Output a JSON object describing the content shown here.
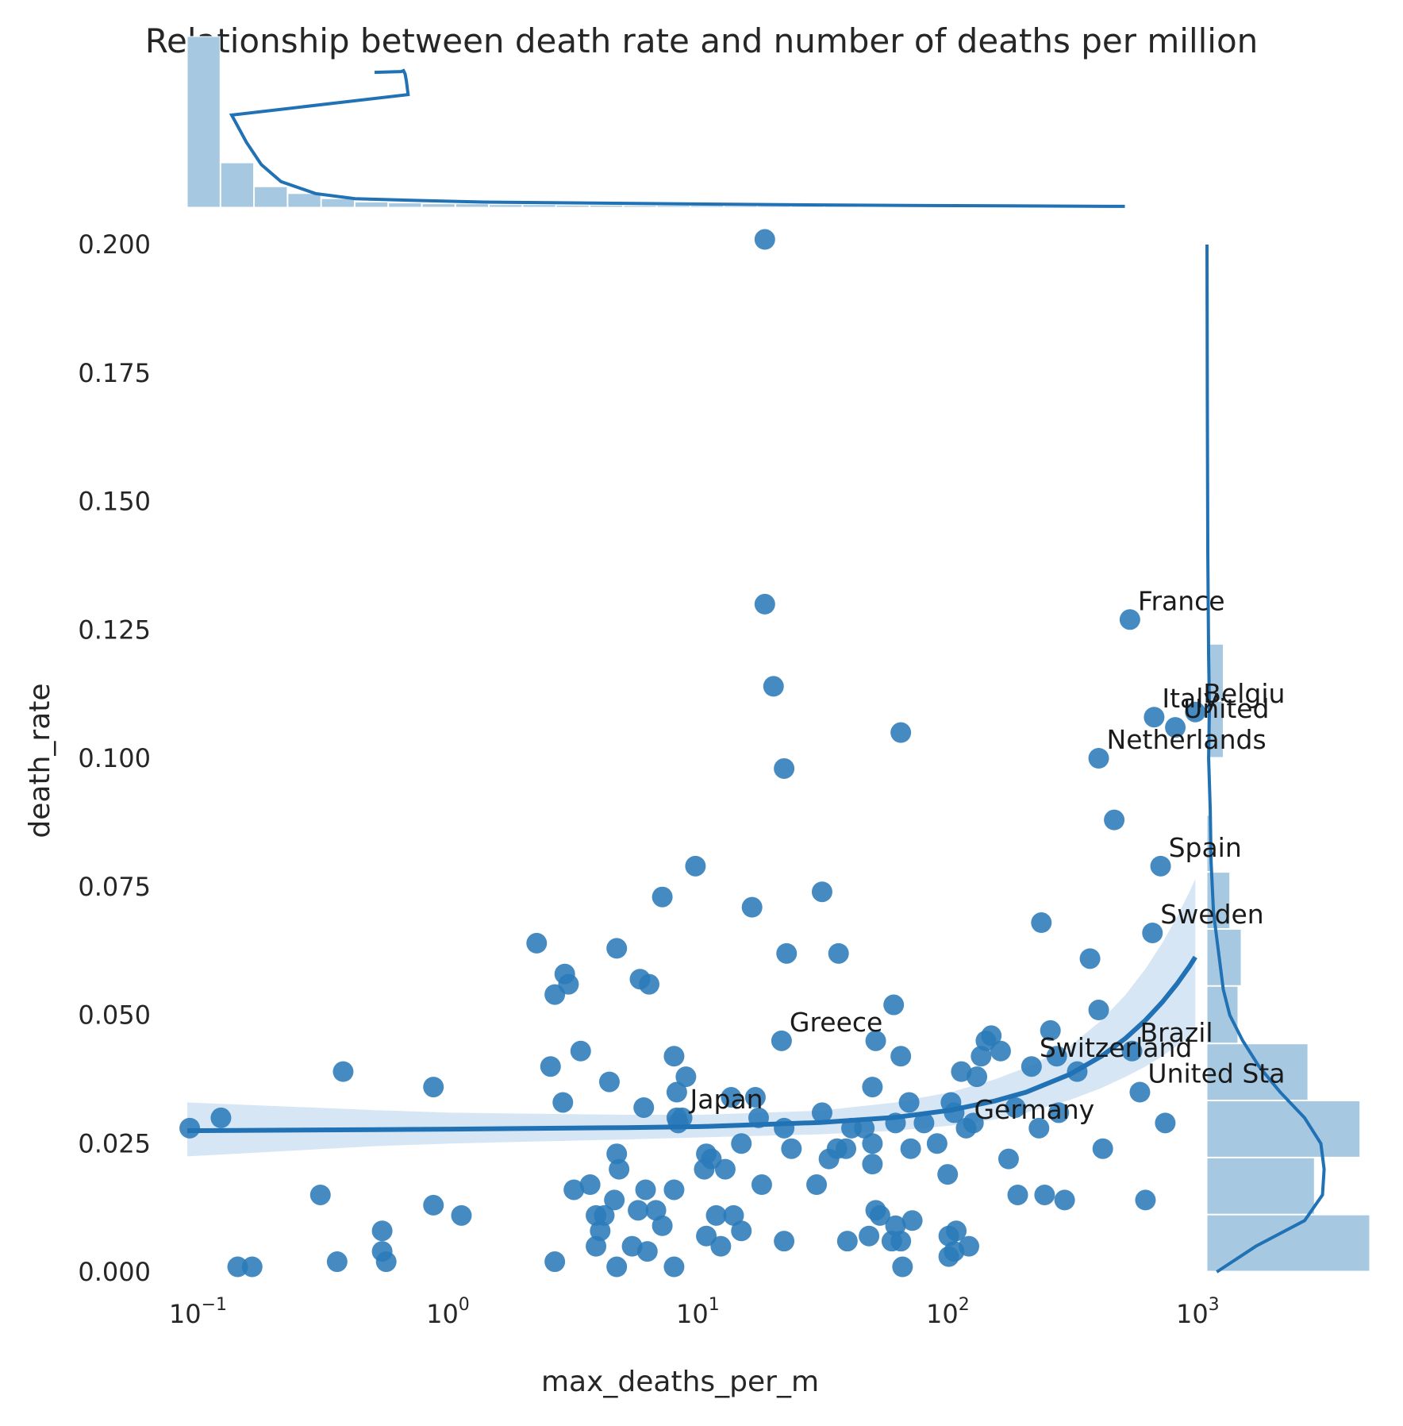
{
  "chart_data": {
    "type": "scatter",
    "title": "Relationship between death rate and number of deaths per million",
    "xlabel": "max_deaths_per_m",
    "ylabel": "death_rate",
    "x_scale": "log",
    "xlim": [
      0.088,
      1050
    ],
    "ylim": [
      0,
      0.2
    ],
    "x_ticks": [
      {
        "value": 0.1,
        "base": "10",
        "exp": "−1"
      },
      {
        "value": 1,
        "base": "10",
        "exp": "0"
      },
      {
        "value": 10,
        "base": "10",
        "exp": "1"
      },
      {
        "value": 100,
        "base": "10",
        "exp": "2"
      },
      {
        "value": 1000,
        "base": "10",
        "exp": "3"
      }
    ],
    "y_ticks": [
      "0.000",
      "0.025",
      "0.050",
      "0.075",
      "0.100",
      "0.125",
      "0.150",
      "0.175",
      "0.200"
    ],
    "grid": false,
    "colors": {
      "points": "#2b7bba",
      "line": "#2171b5",
      "band": "#c6dbef",
      "hist": "#a6c8e0"
    },
    "points": [
      [
        0.09,
        0.028
      ],
      [
        0.12,
        0.03
      ],
      [
        0.14,
        0.001
      ],
      [
        0.16,
        0.001
      ],
      [
        0.3,
        0.015
      ],
      [
        0.35,
        0.002
      ],
      [
        0.37,
        0.039
      ],
      [
        0.53,
        0.008
      ],
      [
        0.53,
        0.004
      ],
      [
        0.55,
        0.002
      ],
      [
        0.85,
        0.036
      ],
      [
        0.85,
        0.013
      ],
      [
        1.1,
        0.011
      ],
      [
        2.2,
        0.064
      ],
      [
        2.5,
        0.04
      ],
      [
        2.6,
        0.054
      ],
      [
        2.6,
        0.002
      ],
      [
        2.8,
        0.033
      ],
      [
        2.85,
        0.058
      ],
      [
        2.95,
        0.056
      ],
      [
        3.1,
        0.016
      ],
      [
        3.3,
        0.043
      ],
      [
        3.6,
        0.017
      ],
      [
        3.8,
        0.011
      ],
      [
        3.8,
        0.005
      ],
      [
        3.95,
        0.008
      ],
      [
        4.1,
        0.011
      ],
      [
        4.3,
        0.037
      ],
      [
        4.5,
        0.014
      ],
      [
        4.6,
        0.063
      ],
      [
        4.6,
        0.023
      ],
      [
        4.6,
        0.001
      ],
      [
        4.7,
        0.02
      ],
      [
        5.3,
        0.005
      ],
      [
        5.6,
        0.012
      ],
      [
        5.7,
        0.057
      ],
      [
        5.9,
        0.032
      ],
      [
        6.0,
        0.016
      ],
      [
        6.1,
        0.004
      ],
      [
        6.2,
        0.056
      ],
      [
        6.6,
        0.012
      ],
      [
        7.0,
        0.073
      ],
      [
        7.0,
        0.009
      ],
      [
        7.8,
        0.042
      ],
      [
        7.8,
        0.016
      ],
      [
        7.8,
        0.001
      ],
      [
        8.0,
        0.035
      ],
      [
        8.0,
        0.03
      ],
      [
        8.1,
        0.029
      ],
      [
        8.4,
        0.03
      ],
      [
        8.7,
        0.038
      ],
      [
        9.5,
        0.079
      ],
      [
        10.3,
        0.02
      ],
      [
        10.5,
        0.023
      ],
      [
        10.5,
        0.007
      ],
      [
        11.0,
        0.022
      ],
      [
        11.5,
        0.011
      ],
      [
        12.0,
        0.005
      ],
      [
        12.5,
        0.02
      ],
      [
        13.2,
        0.034
      ],
      [
        13.5,
        0.011
      ],
      [
        14.5,
        0.025
      ],
      [
        14.5,
        0.008
      ],
      [
        16.0,
        0.071
      ],
      [
        16.5,
        0.034
      ],
      [
        17.0,
        0.03
      ],
      [
        17.5,
        0.017
      ],
      [
        18.0,
        0.201
      ],
      [
        18.0,
        0.13
      ],
      [
        19.5,
        0.114
      ],
      [
        21.0,
        0.045
      ],
      [
        21.5,
        0.098
      ],
      [
        21.5,
        0.006
      ],
      [
        21.5,
        0.028
      ],
      [
        22.0,
        0.062
      ],
      [
        23.0,
        0.024
      ],
      [
        29.0,
        0.017
      ],
      [
        30.5,
        0.074
      ],
      [
        30.5,
        0.031
      ],
      [
        32.5,
        0.022
      ],
      [
        35.0,
        0.024
      ],
      [
        35.5,
        0.062
      ],
      [
        38.0,
        0.024
      ],
      [
        38.5,
        0.006
      ],
      [
        40.0,
        0.028
      ],
      [
        45.0,
        0.028
      ],
      [
        47.0,
        0.007
      ],
      [
        48.5,
        0.036
      ],
      [
        48.5,
        0.025
      ],
      [
        48.5,
        0.021
      ],
      [
        50.0,
        0.012
      ],
      [
        50.0,
        0.045
      ],
      [
        52.0,
        0.011
      ],
      [
        58.0,
        0.006
      ],
      [
        59.0,
        0.052
      ],
      [
        60.0,
        0.029
      ],
      [
        60.0,
        0.009
      ],
      [
        63.0,
        0.105
      ],
      [
        63.0,
        0.042
      ],
      [
        63.0,
        0.006
      ],
      [
        64.0,
        0.001
      ],
      [
        68.0,
        0.033
      ],
      [
        69.0,
        0.024
      ],
      [
        70.0,
        0.01
      ],
      [
        78.0,
        0.029
      ],
      [
        88.0,
        0.025
      ],
      [
        97.0,
        0.019
      ],
      [
        98.0,
        0.007
      ],
      [
        98.0,
        0.003
      ],
      [
        100.0,
        0.033
      ],
      [
        103.0,
        0.031
      ],
      [
        103.0,
        0.004
      ],
      [
        105.0,
        0.008
      ],
      [
        110.0,
        0.039
      ],
      [
        115.0,
        0.028
      ],
      [
        118.0,
        0.005
      ],
      [
        123.0,
        0.029
      ],
      [
        127.0,
        0.038
      ],
      [
        132.0,
        0.042
      ],
      [
        138.0,
        0.045
      ],
      [
        145.0,
        0.046
      ],
      [
        158.0,
        0.043
      ],
      [
        170.0,
        0.022
      ],
      [
        181.0,
        0.032
      ],
      [
        185.0,
        0.015
      ],
      [
        210.0,
        0.04
      ],
      [
        225.0,
        0.028
      ],
      [
        230.0,
        0.068
      ],
      [
        237.0,
        0.015
      ],
      [
        250.0,
        0.047
      ],
      [
        265.0,
        0.042
      ],
      [
        270.0,
        0.031
      ],
      [
        285.0,
        0.014
      ],
      [
        320.0,
        0.039
      ],
      [
        360.0,
        0.061
      ],
      [
        390.0,
        0.1
      ],
      [
        390.0,
        0.051
      ],
      [
        405.0,
        0.024
      ],
      [
        450.0,
        0.088
      ],
      [
        520.0,
        0.127
      ],
      [
        530.0,
        0.043
      ],
      [
        570.0,
        0.035
      ],
      [
        600.0,
        0.014
      ],
      [
        640.0,
        0.066
      ],
      [
        650.0,
        0.108
      ],
      [
        690.0,
        0.079
      ],
      [
        720.0,
        0.029
      ],
      [
        790.0,
        0.106
      ],
      [
        950.0,
        0.109
      ]
    ],
    "annotations": [
      {
        "text": "France",
        "x": 520,
        "y": 0.127
      },
      {
        "text": "Italy",
        "x": 650,
        "y": 0.108
      },
      {
        "text": "Belgiu",
        "x": 950,
        "y": 0.109
      },
      {
        "text": "United",
        "x": 790,
        "y": 0.106
      },
      {
        "text": "Netherlands",
        "x": 390,
        "y": 0.1
      },
      {
        "text": "Spain",
        "x": 690,
        "y": 0.079
      },
      {
        "text": "Sweden",
        "x": 640,
        "y": 0.066
      },
      {
        "text": "Greece",
        "x": 21.0,
        "y": 0.045
      },
      {
        "text": "Brazil",
        "x": 530,
        "y": 0.043
      },
      {
        "text": "Switzerland",
        "x": 210,
        "y": 0.04
      },
      {
        "text": "United Sta",
        "x": 570,
        "y": 0.035
      },
      {
        "text": "Japan",
        "x": 8.4,
        "y": 0.03
      },
      {
        "text": "Germany",
        "x": 115,
        "y": 0.028
      }
    ],
    "regression_line": {
      "x": [
        0.088,
        0.5,
        1,
        5,
        10,
        30,
        60,
        100,
        150,
        200,
        300,
        400,
        500,
        600,
        700,
        800,
        900,
        950
      ],
      "y": [
        0.0275,
        0.0277,
        0.0278,
        0.0281,
        0.0283,
        0.0291,
        0.0301,
        0.0315,
        0.0333,
        0.035,
        0.0385,
        0.042,
        0.0455,
        0.049,
        0.0525,
        0.056,
        0.0595,
        0.0613
      ],
      "ci_lower": [
        0.0225,
        0.0245,
        0.025,
        0.0258,
        0.0262,
        0.0268,
        0.0275,
        0.0285,
        0.0297,
        0.031,
        0.0335,
        0.0358,
        0.038,
        0.04,
        0.042,
        0.044,
        0.0458,
        0.0467
      ],
      "ci_upper": [
        0.033,
        0.0315,
        0.031,
        0.0306,
        0.0306,
        0.0314,
        0.033,
        0.035,
        0.0375,
        0.0398,
        0.044,
        0.049,
        0.054,
        0.059,
        0.064,
        0.069,
        0.074,
        0.0765
      ]
    },
    "x_marginal_hist": {
      "bin_edges": [
        0,
        34,
        68,
        102,
        136,
        170,
        204,
        238,
        272,
        306,
        340,
        374,
        408,
        442,
        476,
        510,
        544,
        578,
        612,
        646,
        680,
        714,
        748,
        782,
        816,
        850,
        884,
        918,
        952
      ],
      "relative_heights": [
        1.0,
        0.26,
        0.12,
        0.08,
        0.05,
        0.03,
        0.025,
        0.02,
        0.02,
        0.015,
        0.015,
        0.012,
        0.012,
        0.01,
        0.01,
        0.01,
        0.008,
        0.008,
        0.008,
        0.008,
        0.006,
        0.006,
        0.006,
        0.006,
        0.005,
        0.005,
        0.005,
        0.005
      ],
      "kde": [
        [
          0.088,
          0.79
        ],
        [
          10,
          0.795
        ],
        [
          15,
          0.8
        ],
        [
          20,
          0.78
        ],
        [
          25,
          0.74
        ],
        [
          34,
          0.66
        ],
        [
          45,
          0.54
        ],
        [
          60,
          0.38
        ],
        [
          75,
          0.25
        ],
        [
          95,
          0.15
        ],
        [
          130,
          0.08
        ],
        [
          170,
          0.05
        ],
        [
          230,
          0.04
        ],
        [
          300,
          0.03
        ],
        [
          400,
          0.025
        ],
        [
          500,
          0.02
        ],
        [
          600,
          0.015
        ],
        [
          750,
          0.01
        ],
        [
          950,
          0.005
        ]
      ]
    },
    "y_marginal_hist": {
      "bin_edges": [
        0.0,
        0.0111,
        0.0222,
        0.0333,
        0.0444,
        0.0556,
        0.0667,
        0.0778,
        0.0889,
        0.1,
        0.1111,
        0.1222
      ],
      "relative_heights": [
        1.0,
        0.66,
        0.94,
        0.62,
        0.19,
        0.21,
        0.14,
        0.03,
        0.0,
        0.1,
        0.1,
        0.05
      ],
      "kde": [
        [
          0.0,
          0.06
        ],
        [
          0.005,
          0.3
        ],
        [
          0.01,
          0.6
        ],
        [
          0.015,
          0.71
        ],
        [
          0.02,
          0.72
        ],
        [
          0.025,
          0.7
        ],
        [
          0.03,
          0.6
        ],
        [
          0.035,
          0.45
        ],
        [
          0.04,
          0.32
        ],
        [
          0.045,
          0.22
        ],
        [
          0.05,
          0.14
        ],
        [
          0.055,
          0.1
        ],
        [
          0.06,
          0.08
        ],
        [
          0.065,
          0.06
        ],
        [
          0.07,
          0.04
        ],
        [
          0.08,
          0.025
        ],
        [
          0.09,
          0.02
        ],
        [
          0.1,
          0.01
        ],
        [
          0.11,
          0.015
        ],
        [
          0.12,
          0.01
        ],
        [
          0.14,
          0.005
        ],
        [
          0.17,
          0.002
        ],
        [
          0.2,
          0.0
        ]
      ]
    }
  }
}
